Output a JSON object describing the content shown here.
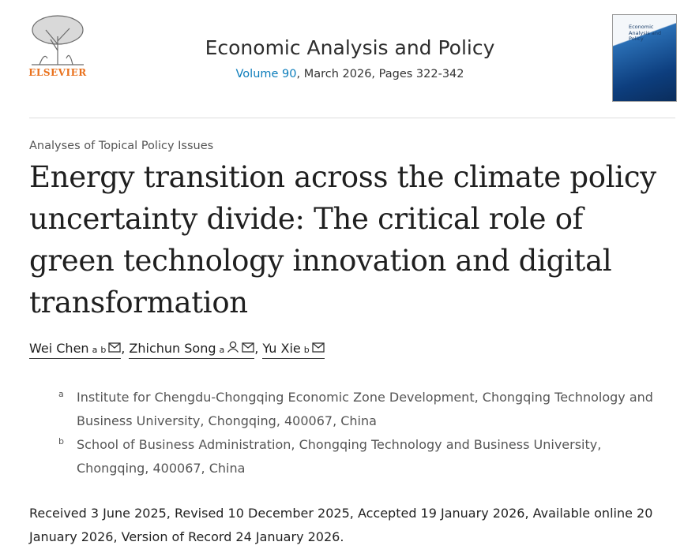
{
  "header": {
    "publisher": "ELSEVIER",
    "journal": "Economic Analysis and Policy",
    "volume": "Volume 90",
    "issue_info": ", March 2026, Pages 322-342",
    "cover_title": "Economic Analysis and Policy"
  },
  "article": {
    "section": "Analyses of Topical Policy Issues",
    "title": "Energy transition across the climate policy uncertainty divide: The critical role of green technology innovation and digital transformation",
    "authors": [
      {
        "name": "Wei Chen",
        "affiliations": [
          "a",
          "b"
        ],
        "suffix": ","
      },
      {
        "name": "Zhichun Song",
        "affiliations": [
          "a"
        ],
        "suffix": ","
      },
      {
        "name": "Yu Xie",
        "affiliations": [
          "b"
        ]
      }
    ],
    "affiliations": [
      {
        "label": "a",
        "text": "Institute for Chengdu-Chongqing Economic Zone Development, Chongqing Technology and Business University, Chongqing, 400067, China"
      },
      {
        "label": "b",
        "text": "School of Business Administration, Chongqing Technology and Business University, Chongqing, 400067, China"
      }
    ],
    "history": "Received 3 June 2025, Revised 10 December 2025, Accepted 19 January 2026, Available online 20 January 2026, Version of Record 24 January 2026."
  }
}
